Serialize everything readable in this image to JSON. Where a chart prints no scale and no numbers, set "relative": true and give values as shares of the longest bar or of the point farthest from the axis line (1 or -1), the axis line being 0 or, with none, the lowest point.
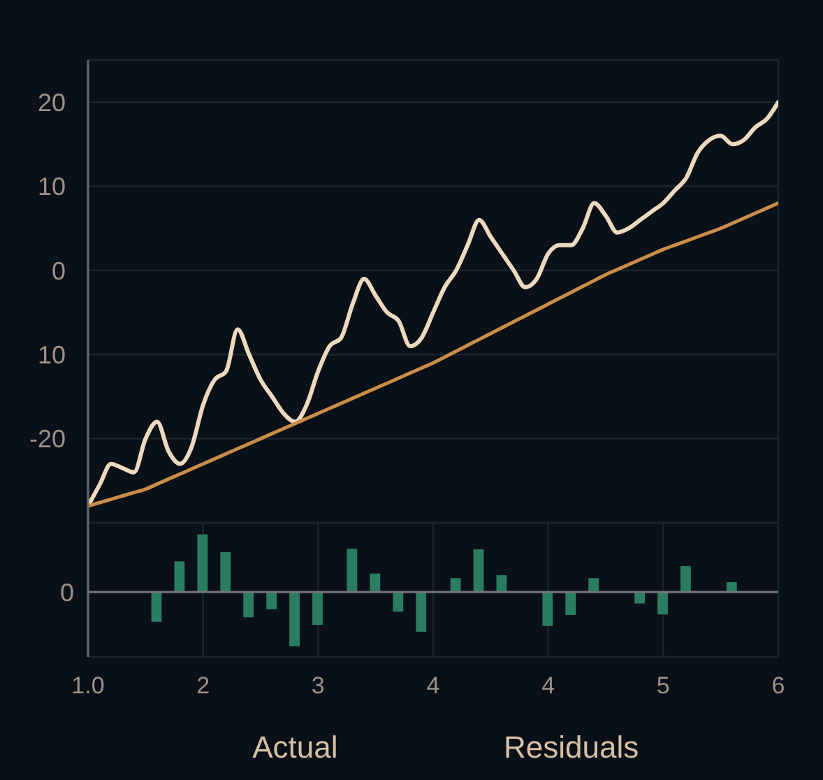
{
  "chart_data": [
    {
      "type": "line",
      "categories": [
        "1.0",
        null,
        null,
        null,
        null,
        null,
        null,
        null,
        null,
        null,
        "2",
        null,
        null,
        null,
        null,
        null,
        null,
        null,
        null,
        null,
        "3",
        null,
        null,
        null,
        null,
        null,
        null,
        null,
        null,
        null,
        "4",
        null,
        null,
        null,
        null,
        null,
        null,
        null,
        null,
        null,
        "4",
        null,
        null,
        null,
        null,
        null,
        null,
        null,
        null,
        null,
        "5",
        null,
        null,
        null,
        null,
        null,
        null,
        null,
        null,
        null,
        "6"
      ],
      "series": [
        {
          "color": "#ecd9bf",
          "values": [
            -28,
            -25.5,
            -23,
            -23.5,
            -24,
            -20,
            -18,
            -21.5,
            -23,
            -21,
            -16,
            -13,
            -12,
            -7,
            -10,
            -13,
            -15,
            -17,
            -18,
            -16,
            -12,
            -9,
            -8,
            -4,
            -1,
            -3,
            -5,
            -6,
            -9,
            -8,
            -5,
            -2,
            0,
            3,
            6,
            4,
            2,
            0,
            -2,
            -1,
            2,
            3,
            3,
            5,
            8,
            6.5,
            4.5,
            5,
            6,
            7,
            8,
            9.5,
            11,
            14,
            15.5,
            16,
            15,
            15.5,
            17,
            18,
            20
          ]
        },
        {
          "color": "#c98d47",
          "values": [
            -28,
            -27.6,
            -27.2,
            -26.8,
            -26.4,
            -26,
            -25.4,
            -24.8,
            -24.2,
            -23.6,
            -23,
            -22.4,
            -21.8,
            -21.2,
            -20.6,
            -20,
            -19.4,
            -18.8,
            -18.2,
            -17.6,
            -17,
            -16.4,
            -15.8,
            -15.2,
            -14.6,
            -14,
            -13.4,
            -12.8,
            -12.2,
            -11.6,
            -11,
            -10.3,
            -9.6,
            -8.9,
            -8.2,
            -7.5,
            -6.8,
            -6.1,
            -5.4,
            -4.7,
            -4,
            -3.3,
            -2.6,
            -1.9,
            -1.2,
            -0.5,
            0.1,
            0.7,
            1.3,
            1.9,
            2.5,
            3,
            3.5,
            4,
            4.5,
            5,
            5.6,
            6.2,
            6.8,
            7.4,
            8
          ]
        }
      ],
      "ylim": [
        -30,
        25
      ],
      "yticks": [
        20,
        10,
        0,
        {
          "value": -10,
          "label": "10"
        },
        -20
      ],
      "grid": true,
      "tick_labels": "y"
    },
    {
      "type": "bar",
      "categories": [
        "1.0",
        null,
        null,
        null,
        null,
        null,
        null,
        null,
        null,
        null,
        "2",
        null,
        null,
        null,
        null,
        null,
        null,
        null,
        null,
        null,
        "3",
        null,
        null,
        null,
        null,
        null,
        null,
        null,
        null,
        null,
        "4",
        null,
        null,
        null,
        null,
        null,
        null,
        null,
        null,
        null,
        "4",
        null,
        null,
        null,
        null,
        null,
        null,
        null,
        null,
        null,
        "5",
        null,
        null,
        null,
        null,
        null,
        null,
        null,
        null,
        null,
        "6"
      ],
      "values": [
        null,
        null,
        null,
        null,
        null,
        null,
        -0.52,
        null,
        0.53,
        null,
        1,
        null,
        0.69,
        null,
        -0.44,
        null,
        -0.3,
        null,
        -0.94,
        null,
        -0.57,
        null,
        null,
        0.75,
        null,
        0.32,
        null,
        -0.34,
        null,
        -0.69,
        null,
        null,
        0.24,
        null,
        0.74,
        null,
        0.29,
        null,
        null,
        null,
        -0.59,
        null,
        -0.4,
        null,
        0.24,
        null,
        null,
        null,
        -0.2,
        null,
        -0.39,
        null,
        0.45,
        null,
        null,
        null,
        0.17,
        null,
        null,
        null,
        null
      ],
      "color": "#2a7d60",
      "relative": true,
      "grid": "x",
      "tick_labels": "x",
      "ref_lines": [
        {
          "axis": "y",
          "value": 0,
          "label": "0"
        }
      ],
      "annotations": [
        "Actual",
        "Residuals"
      ]
    }
  ]
}
